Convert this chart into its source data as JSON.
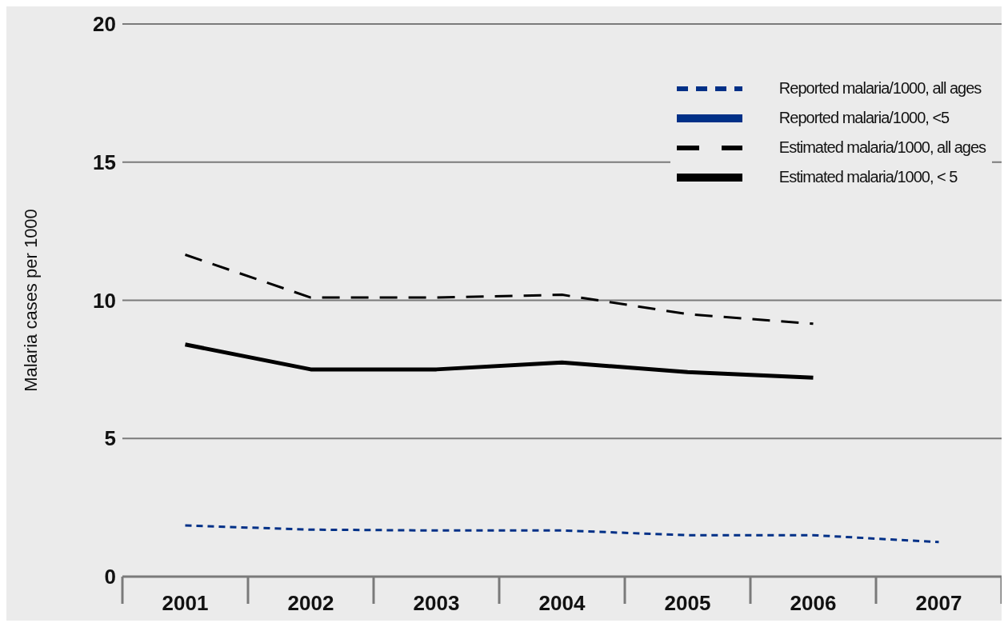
{
  "chart_data": {
    "type": "line",
    "ylabel": "Malaria cases per 1000",
    "categories": [
      "2001",
      "2002",
      "2003",
      "2004",
      "2005",
      "2006",
      "2007"
    ],
    "series": [
      {
        "name": "Reported malaria/1000, all ages",
        "color": "#003087",
        "line_style": "dotted",
        "values": [
          1.85,
          1.7,
          1.67,
          1.67,
          1.5,
          1.5,
          1.25
        ]
      },
      {
        "name": "Reported malaria/1000, <5",
        "color": "#003087",
        "line_style": "solid",
        "values": [
          null,
          null,
          null,
          null,
          null,
          null,
          null
        ]
      },
      {
        "name": "Estimated malaria/1000, all ages",
        "color": "#000000",
        "line_style": "dashed",
        "values": [
          11.65,
          10.1,
          10.1,
          10.2,
          9.5,
          9.15,
          null
        ]
      },
      {
        "name": "Estimated malaria/1000, < 5",
        "color": "#000000",
        "line_style": "solid",
        "values": [
          8.4,
          7.5,
          7.5,
          7.75,
          7.4,
          7.2,
          null
        ]
      }
    ],
    "ylim": [
      0,
      20
    ],
    "yticks": [
      0,
      5,
      10,
      15,
      20
    ],
    "grid": "y",
    "legend": "top right"
  }
}
